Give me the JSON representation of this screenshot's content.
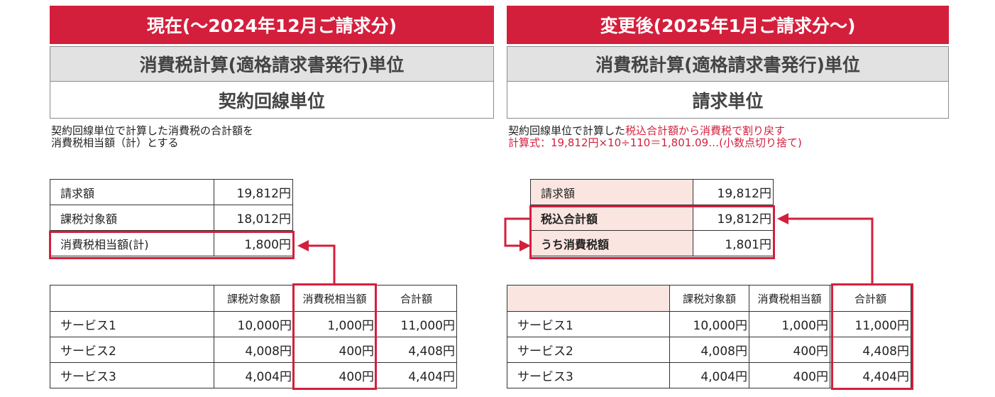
{
  "left": {
    "header": "現在(〜2024年12月ご請求分)",
    "unit_title": "消費税計算(適格請求書発行)単位",
    "unit_value": "契約回線単位",
    "note_line1": "契約回線単位で計算した消費税の合計額を",
    "note_line2": "消費税相当額（計）とする",
    "summary": [
      {
        "label": "請求額",
        "value": "19,812円"
      },
      {
        "label": "課税対象額",
        "value": "18,012円"
      },
      {
        "label": "消費税相当額(計)",
        "value": "1,800円"
      }
    ],
    "columns": [
      "",
      "課税対象額",
      "消費税相当額",
      "合計額"
    ],
    "rows": [
      {
        "name": "サービス1",
        "taxable": "10,000円",
        "tax": "1,000円",
        "total": "11,000円"
      },
      {
        "name": "サービス2",
        "taxable": "4,008円",
        "tax": "400円",
        "total": "4,408円"
      },
      {
        "name": "サービス3",
        "taxable": "4,004円",
        "tax": "400円",
        "total": "4,404円"
      }
    ]
  },
  "right": {
    "header": "変更後(2025年1月ご請求分〜)",
    "unit_title": "消費税計算(適格請求書発行)単位",
    "unit_value": "請求単位",
    "note_line1_black": "契約回線単位で計算した",
    "note_line1_red": "税込合計額から消費税で割り戻す",
    "note_line2": "計算式：19,812円×10÷110＝1,801.09…(小数点切り捨て)",
    "summary": [
      {
        "label": "請求額",
        "value": "19,812円"
      },
      {
        "label": "税込合計額",
        "value": "19,812円"
      },
      {
        "label": "うち消費税額",
        "value": "1,801円"
      }
    ],
    "columns": [
      "",
      "課税対象額",
      "消費税相当額",
      "合計額"
    ],
    "rows": [
      {
        "name": "サービス1",
        "taxable": "10,000円",
        "tax": "1,000円",
        "total": "11,000円"
      },
      {
        "name": "サービス2",
        "taxable": "4,008円",
        "tax": "400円",
        "total": "4,408円"
      },
      {
        "name": "サービス3",
        "taxable": "4,004円",
        "tax": "400円",
        "total": "4,404円"
      }
    ]
  },
  "colors": {
    "accent_red": "#d31f3c",
    "header_gray": "#e2e2e2",
    "pink_fill": "#fbe5e1"
  }
}
